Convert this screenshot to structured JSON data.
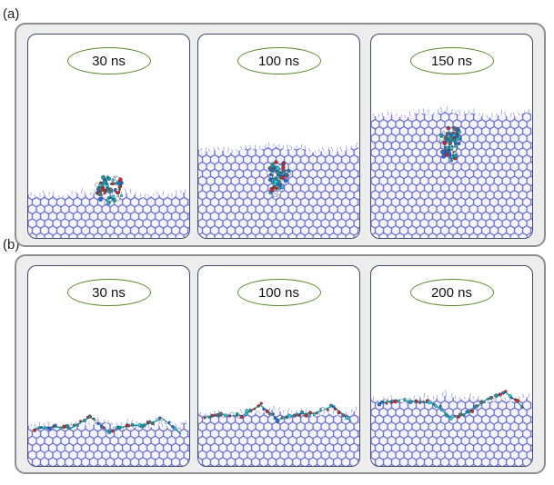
{
  "panels": [
    {
      "label": "(a)",
      "frames": [
        {
          "time": "30 ns",
          "surface_level": 0.78,
          "molecule": "cluster"
        },
        {
          "time": "100 ns",
          "surface_level": 0.56,
          "molecule": "embedded"
        },
        {
          "time": "150 ns",
          "surface_level": 0.39,
          "molecule": "embedded"
        }
      ]
    },
    {
      "label": "(b)",
      "frames": [
        {
          "time": "30 ns",
          "surface_level": 0.79,
          "molecule": "chain"
        },
        {
          "time": "100 ns",
          "surface_level": 0.73,
          "molecule": "chain"
        },
        {
          "time": "200 ns",
          "surface_level": 0.66,
          "molecule": "chain"
        }
      ]
    }
  ],
  "colors": {
    "lattice": "#5a5ad0",
    "lattice_fill": "#c9c9f2",
    "ellipse": "#5a8a2a",
    "frame_border": "#404a66",
    "group_background": "#ededed",
    "atoms": [
      "#30c8d8",
      "#1a9aa8",
      "#d02828",
      "#ffffff",
      "#2a6ad0",
      "#6a6a6a"
    ]
  }
}
